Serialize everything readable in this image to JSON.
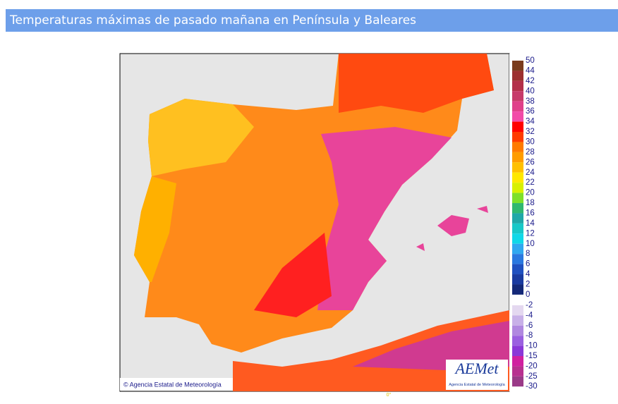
{
  "header": {
    "title": "Temperaturas máximas de pasado mañana en Península y Baleares"
  },
  "map": {
    "credit": "© Agencia Estatal de Meteorología",
    "logo": "AEMet",
    "logo_subtitle": "Agencia Estatal de Meteorología",
    "meridian_label": "0°"
  },
  "legend": {
    "upper_labels": [
      50,
      44,
      42,
      40,
      38,
      36,
      34,
      32,
      30,
      28,
      26,
      24,
      22,
      20,
      18,
      16,
      14,
      12,
      10,
      8,
      6,
      4,
      2,
      0
    ],
    "upper_colors": [
      "#7a3b1c",
      "#9c2f2f",
      "#b3304a",
      "#c73a6a",
      "#e0408a",
      "#f24aa8",
      "#ff0000",
      "#ff3a00",
      "#ff7a00",
      "#ff9c00",
      "#ffc000",
      "#ffe800",
      "#d8f000",
      "#7ee02a",
      "#30b870",
      "#20a8a8",
      "#18c8c8",
      "#10d8e8",
      "#30a8f0",
      "#2a78e0",
      "#2050c0",
      "#1a3aa0",
      "#142878"
    ],
    "lower_labels": [
      -2,
      -4,
      -6,
      -8,
      -10,
      -15,
      -20,
      -25,
      -30
    ],
    "lower_colors": [
      "#e4d8f0",
      "#c8b0e8",
      "#b088e0",
      "#9a60e0",
      "#8a38d8",
      "#d020a0",
      "#b83090",
      "#9a3a88"
    ]
  }
}
